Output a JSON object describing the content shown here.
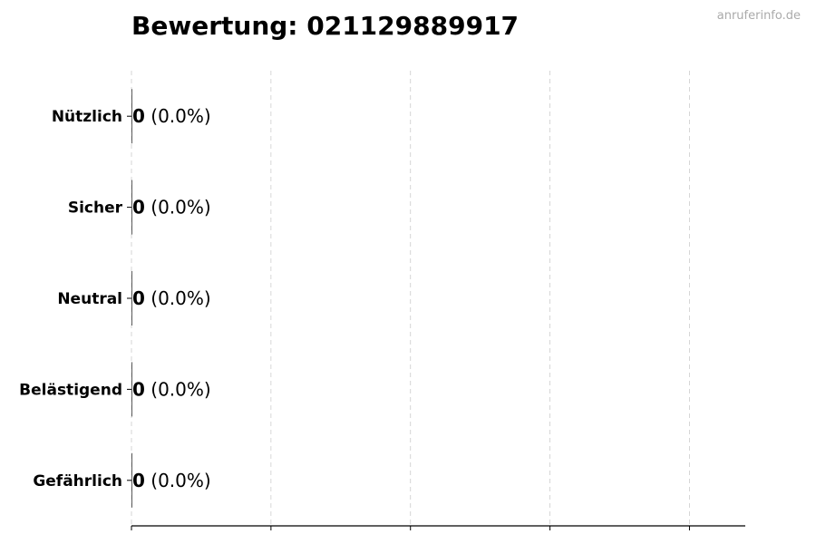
{
  "chart_data": {
    "type": "bar",
    "orientation": "horizontal",
    "title": "Bewertung: 021129889917",
    "categories": [
      "Nützlich",
      "Sicher",
      "Neutral",
      "Belästigend",
      "Gefährlich"
    ],
    "values": [
      0,
      0,
      0,
      0,
      0
    ],
    "value_labels": [
      "0",
      "0",
      "0",
      "0",
      "0"
    ],
    "percent_labels": [
      "(0.0%)",
      "(0.0%)",
      "(0.0%)",
      "(0.0%)",
      "(0.0%)"
    ],
    "xlabel": "",
    "ylabel": "",
    "xticks": [
      0,
      1,
      2,
      3,
      4
    ],
    "xtick_labels_shown": false,
    "xlim": [
      0,
      4.4
    ],
    "grid": "vertical dashed",
    "colors": {
      "grid": "#cccccc",
      "axis": "#000000",
      "bar_edge": "#333333"
    }
  },
  "watermark": "anruferinfo.de"
}
